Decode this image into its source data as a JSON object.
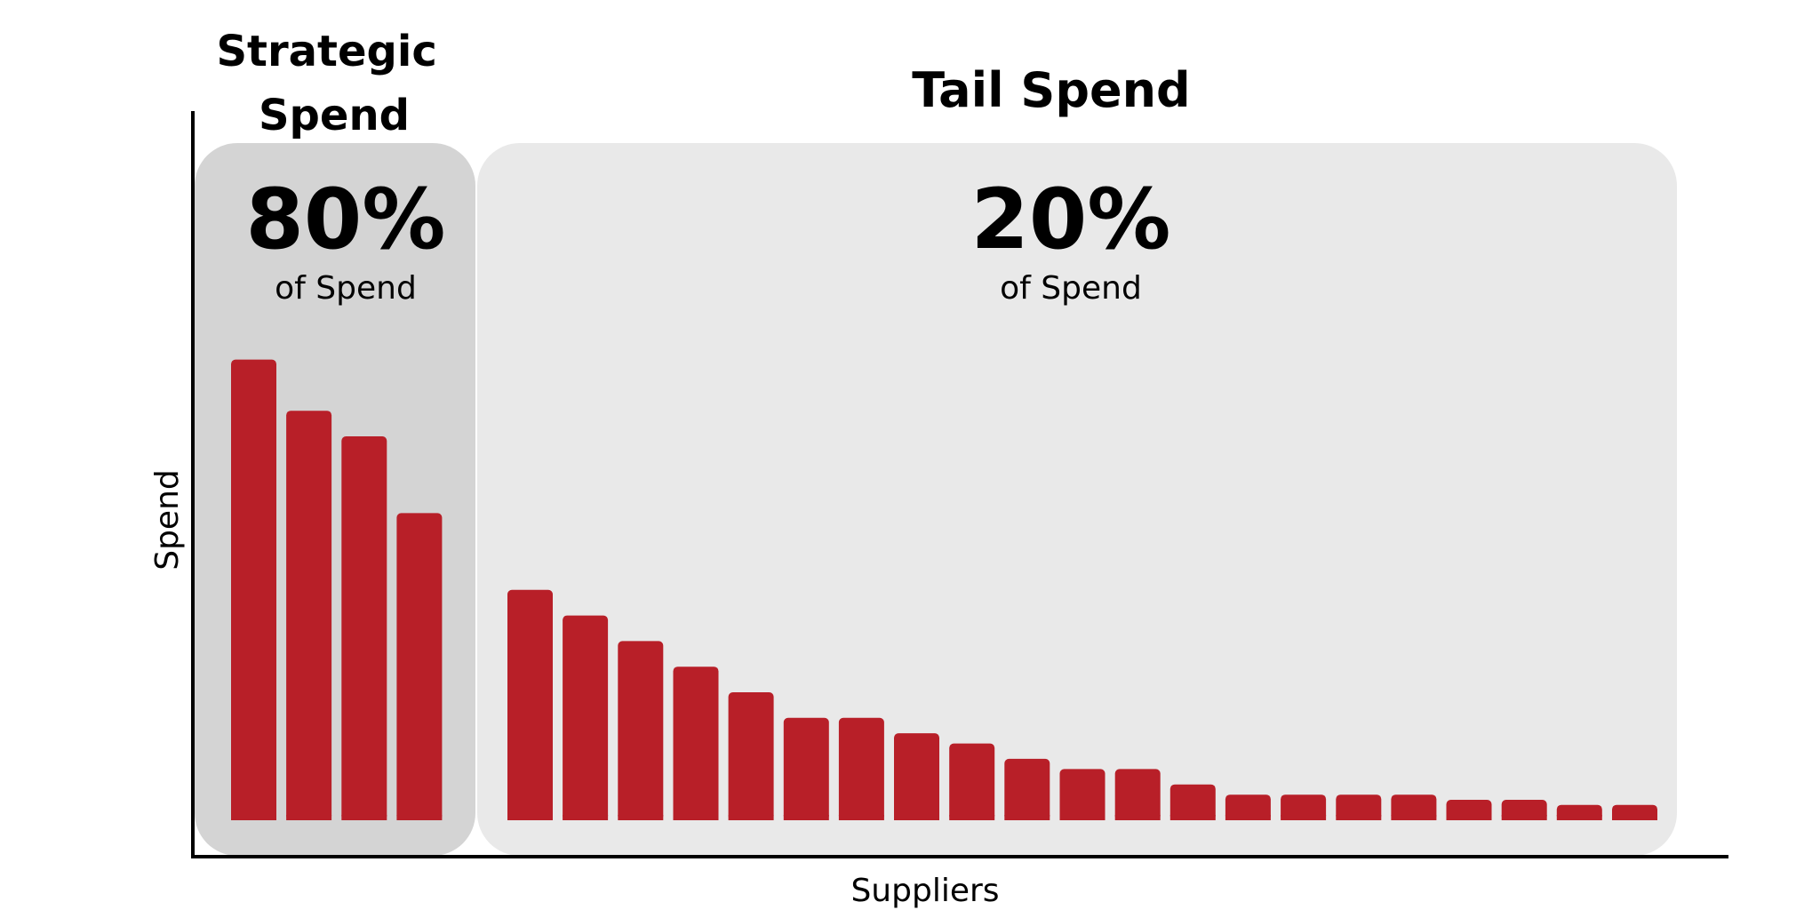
{
  "chart_data": {
    "type": "bar",
    "xlabel": "Suppliers",
    "ylabel": "Spend",
    "ylim": [
      0,
      100
    ],
    "grid": false,
    "bar_color": "#B81F28",
    "groups": [
      {
        "title_lines": [
          "Strategic",
          "Spend"
        ],
        "percent": "80%",
        "percent_label": "of Spend",
        "panel_color": "#D4D4D4",
        "values": [
          90,
          80,
          75,
          60
        ]
      },
      {
        "title_lines": [
          "Tail Spend"
        ],
        "percent": "20%",
        "percent_label": "of Spend",
        "panel_color": "#E9E9E9",
        "values": [
          45,
          40,
          35,
          30,
          25,
          20,
          20,
          17,
          15,
          12,
          10,
          10,
          7,
          5,
          5,
          5,
          5,
          4,
          4,
          3,
          3
        ]
      }
    ]
  }
}
